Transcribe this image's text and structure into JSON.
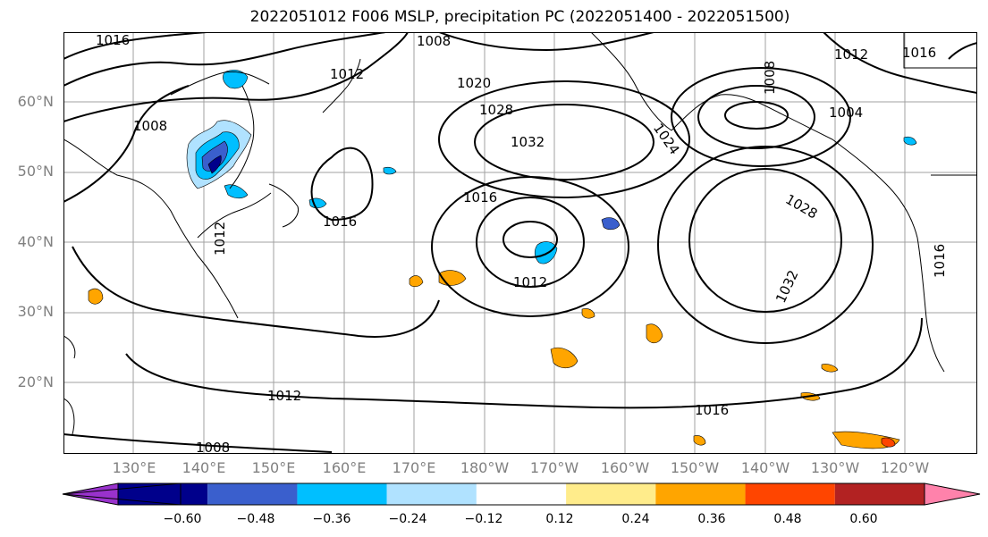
{
  "title": "2022051012 F006 MSLP, precipitation PC (2022051400 - 2022051500)",
  "map": {
    "lat_labels": [
      "60°N",
      "50°N",
      "40°N",
      "30°N",
      "20°N"
    ],
    "lon_labels": [
      "130°E",
      "140°E",
      "150°E",
      "160°E",
      "170°E",
      "180°W",
      "170°W",
      "160°W",
      "150°W",
      "140°W",
      "130°W",
      "120°W"
    ],
    "isobar_labels": [
      "1016",
      "1008",
      "1012",
      "1008",
      "1020",
      "1028",
      "1032",
      "1008",
      "1012",
      "1016",
      "1024",
      "1004",
      "1016",
      "1016",
      "1028",
      "1012",
      "1032",
      "1012",
      "1016",
      "1012",
      "1016",
      "1008"
    ],
    "features": {
      "isobar_color": "#000000",
      "coastline_color": "#000000",
      "gridline_color": "#a0a0a0"
    }
  },
  "colorbar": {
    "tick_labels": [
      "−0.60",
      "−0.48",
      "−0.36",
      "−0.24",
      "−0.12",
      "0.12",
      "0.24",
      "0.36",
      "0.48",
      "0.60"
    ],
    "colors": [
      "#9932cc",
      "#00008b",
      "#3a5fcd",
      "#00bfff",
      "#b0e2ff",
      "#ffffff",
      "#ffec8b",
      "#ffa500",
      "#ff4500",
      "#b22222",
      "#ff82ab"
    ]
  }
}
